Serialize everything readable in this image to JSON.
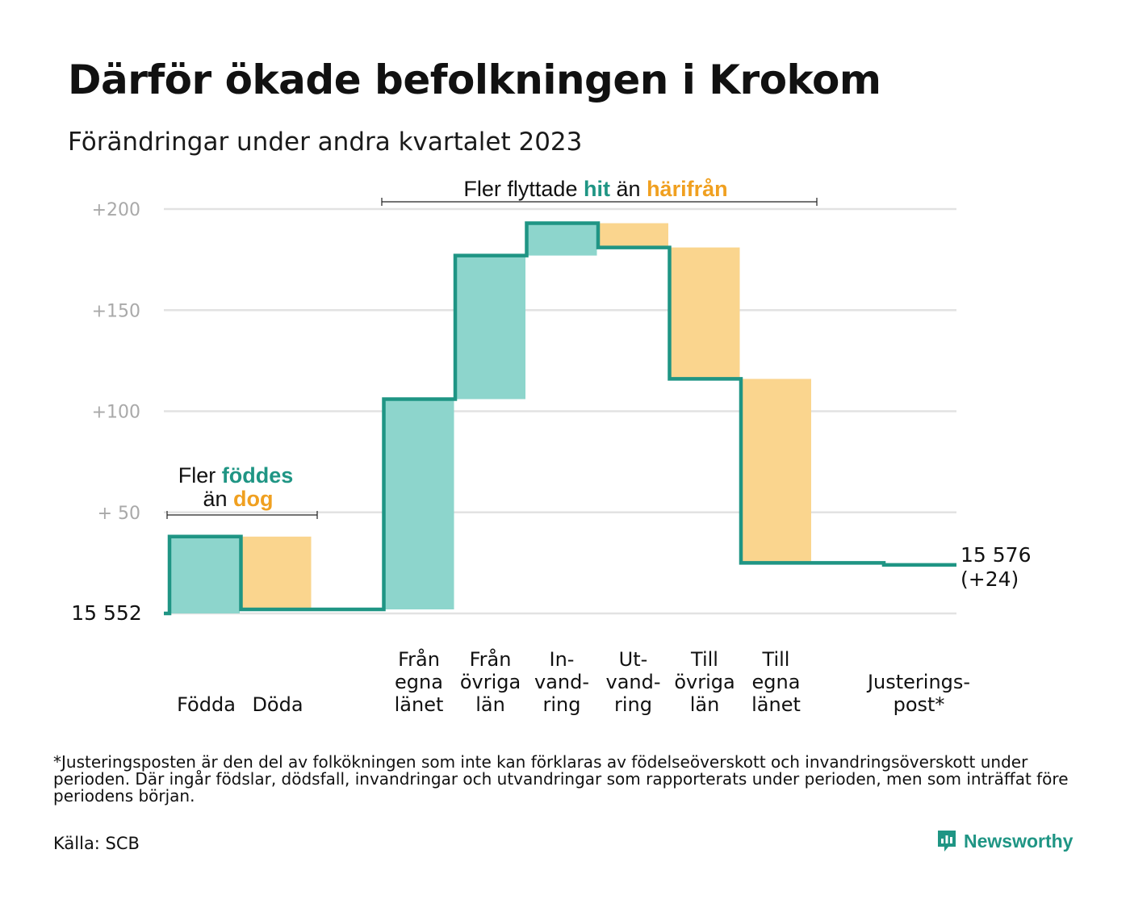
{
  "title": "Därför ökade befolkningen i Krokom",
  "subtitle": "Förändringar under andra kvartalet 2023",
  "colors": {
    "positive": "#8dd5cc",
    "negative": "#fad58e",
    "line": "#1f9584",
    "hit_text": "#1f9584",
    "away_text": "#f0a020",
    "grid": "#e2e2e2",
    "tick": "#a9a9a9"
  },
  "annotations": {
    "births": {
      "line1_prefix": "Fler",
      "line1_highlight": "föddes",
      "line2_prefix": "än",
      "line2_highlight": "dog"
    },
    "migration": {
      "prefix": "Fler flyttade",
      "highlight1": "hit",
      "middle": "än",
      "highlight2": "härifrån"
    }
  },
  "chart_data": {
    "type": "bar",
    "subtype": "waterfall",
    "start_value": 15552,
    "start_label": "15  552",
    "end_label_line1": "15 576",
    "end_label_line2": "(+24)",
    "ylim": [
      0,
      200
    ],
    "yticks": [
      {
        "value": 50,
        "label": "+  50"
      },
      {
        "value": 100,
        "label": "+100"
      },
      {
        "value": 150,
        "label": "+150"
      },
      {
        "value": 200,
        "label": "+200"
      }
    ],
    "grid": true,
    "steps": [
      {
        "label": [
          "Födda"
        ],
        "change": 38,
        "kind": "positive"
      },
      {
        "label": [
          "Döda"
        ],
        "change": -36,
        "kind": "negative"
      },
      {
        "label": [],
        "change": 0,
        "kind": "none"
      },
      {
        "label": [
          "Från",
          "egna",
          "länet"
        ],
        "change": 104,
        "kind": "positive"
      },
      {
        "label": [
          "Från",
          "övriga",
          "län"
        ],
        "change": 71,
        "kind": "positive"
      },
      {
        "label": [
          "In-",
          "vand-",
          "ring"
        ],
        "change": 16,
        "kind": "positive"
      },
      {
        "label": [
          "Ut-",
          "vand-",
          "ring"
        ],
        "change": -12,
        "kind": "negative"
      },
      {
        "label": [
          "Till",
          "övriga",
          "län"
        ],
        "change": -65,
        "kind": "negative"
      },
      {
        "label": [
          "Till",
          "egna",
          "länet"
        ],
        "change": -91,
        "kind": "negative"
      },
      {
        "label": [],
        "change": 0,
        "kind": "none"
      },
      {
        "label": [
          "Justerings-",
          "post*"
        ],
        "change": -1,
        "kind": "adjustment"
      }
    ]
  },
  "footnote": "*Justeringsposten är den del av folkökningen som inte kan förklaras av födelseöverskott och invandringsöverskott under perioden. Där ingår födslar, dödsfall, invandringar och utvandringar som rapporterats under perioden, men som inträffat före periodens början.",
  "source": "Källa: SCB",
  "brand": {
    "name": "Newsworthy",
    "icon": "newsworthy-logo-icon"
  }
}
